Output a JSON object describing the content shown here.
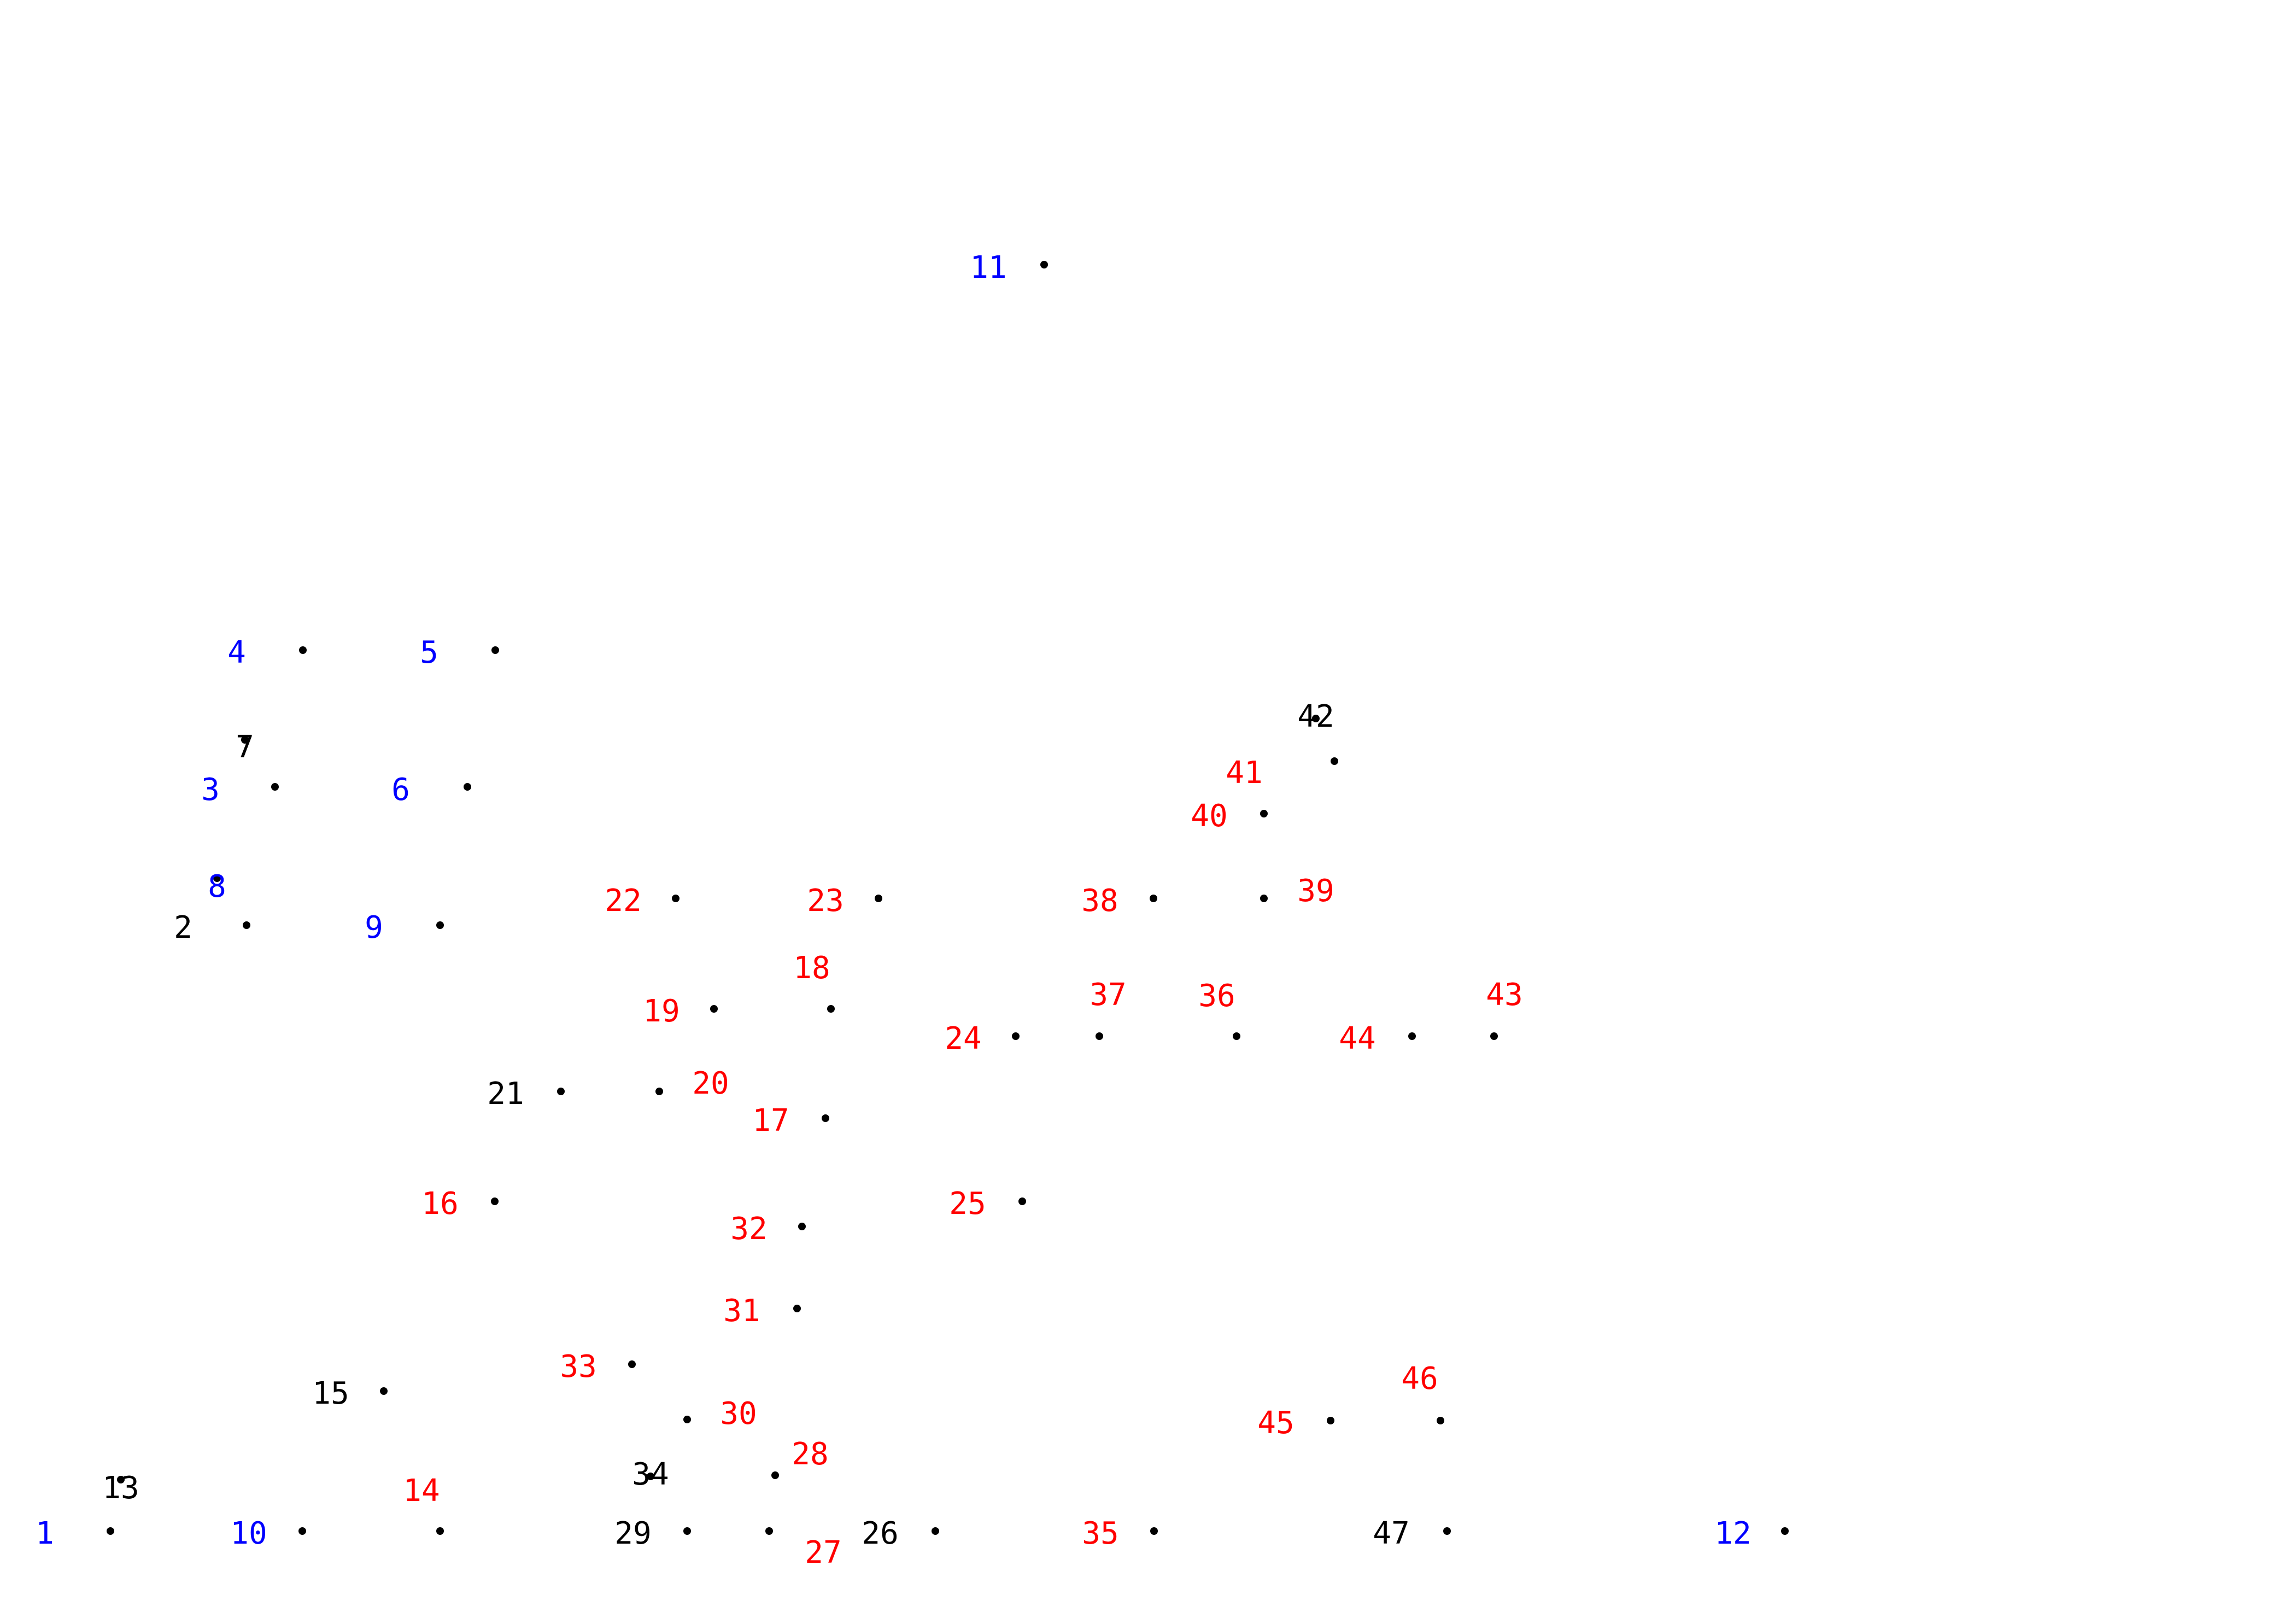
{
  "colors": {
    "background": "#ffffff",
    "dot": "#000000",
    "blue": "#0000ff",
    "red": "#ff0000",
    "black": "#000000"
  },
  "points": [
    {
      "n": "1",
      "color": "blue"
    },
    {
      "n": "2",
      "color": "black"
    },
    {
      "n": "3",
      "color": "blue"
    },
    {
      "n": "4",
      "color": "blue"
    },
    {
      "n": "5",
      "color": "blue"
    },
    {
      "n": "6",
      "color": "blue"
    },
    {
      "n": "7",
      "color": "black"
    },
    {
      "n": "8",
      "color": "blue"
    },
    {
      "n": "9",
      "color": "blue"
    },
    {
      "n": "10",
      "color": "blue"
    },
    {
      "n": "11",
      "color": "blue"
    },
    {
      "n": "12",
      "color": "blue"
    },
    {
      "n": "13",
      "color": "black"
    },
    {
      "n": "14",
      "color": "red"
    },
    {
      "n": "15",
      "color": "black"
    },
    {
      "n": "16",
      "color": "red"
    },
    {
      "n": "17",
      "color": "red"
    },
    {
      "n": "18",
      "color": "red"
    },
    {
      "n": "19",
      "color": "red"
    },
    {
      "n": "20",
      "color": "red"
    },
    {
      "n": "21",
      "color": "black"
    },
    {
      "n": "22",
      "color": "red"
    },
    {
      "n": "23",
      "color": "red"
    },
    {
      "n": "24",
      "color": "red"
    },
    {
      "n": "25",
      "color": "red"
    },
    {
      "n": "26",
      "color": "black"
    },
    {
      "n": "27",
      "color": "red"
    },
    {
      "n": "28",
      "color": "red"
    },
    {
      "n": "29",
      "color": "black"
    },
    {
      "n": "30",
      "color": "red"
    },
    {
      "n": "31",
      "color": "red"
    },
    {
      "n": "32",
      "color": "red"
    },
    {
      "n": "33",
      "color": "red"
    },
    {
      "n": "34",
      "color": "black"
    },
    {
      "n": "35",
      "color": "red"
    },
    {
      "n": "36",
      "color": "red"
    },
    {
      "n": "37",
      "color": "red"
    },
    {
      "n": "38",
      "color": "red"
    },
    {
      "n": "39",
      "color": "red"
    },
    {
      "n": "40",
      "color": "red"
    },
    {
      "n": "41",
      "color": "red"
    },
    {
      "n": "42",
      "color": "black"
    },
    {
      "n": "43",
      "color": "red"
    },
    {
      "n": "44",
      "color": "red"
    },
    {
      "n": "45",
      "color": "red"
    },
    {
      "n": "46",
      "color": "red"
    },
    {
      "n": "47",
      "color": "black"
    }
  ]
}
